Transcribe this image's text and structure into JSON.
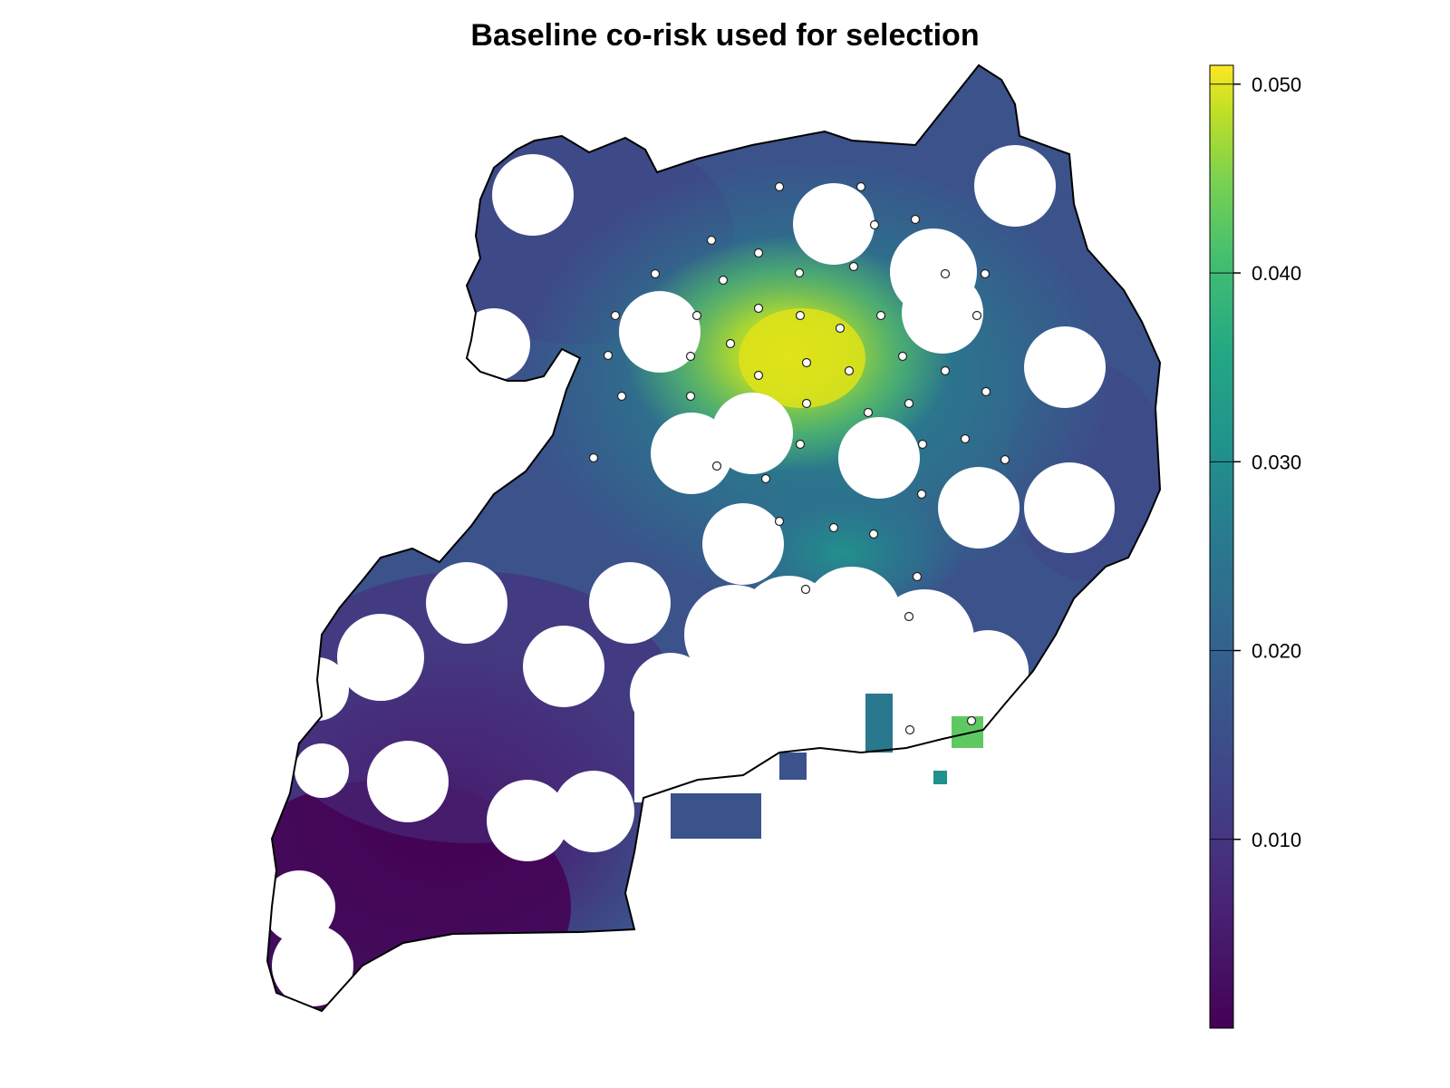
{
  "title": "Baseline co-risk used for selection",
  "colors": {
    "low": "#440154",
    "dark_blue": "#3b528b",
    "teal": "#21918c",
    "green": "#5ec962",
    "high": "#fde725",
    "boundary": "#000000",
    "point_fill": "#ffffff",
    "point_stroke": "#222222"
  },
  "legend": {
    "min": 0.0,
    "max": 0.051,
    "position": "right",
    "ticks": [
      {
        "value": 0.05,
        "label": "0.050"
      },
      {
        "value": 0.04,
        "label": "0.040"
      },
      {
        "value": 0.03,
        "label": "0.030"
      },
      {
        "value": 0.02,
        "label": "0.020"
      },
      {
        "value": 0.01,
        "label": "0.010"
      }
    ]
  },
  "selected_sites_count": 52
}
